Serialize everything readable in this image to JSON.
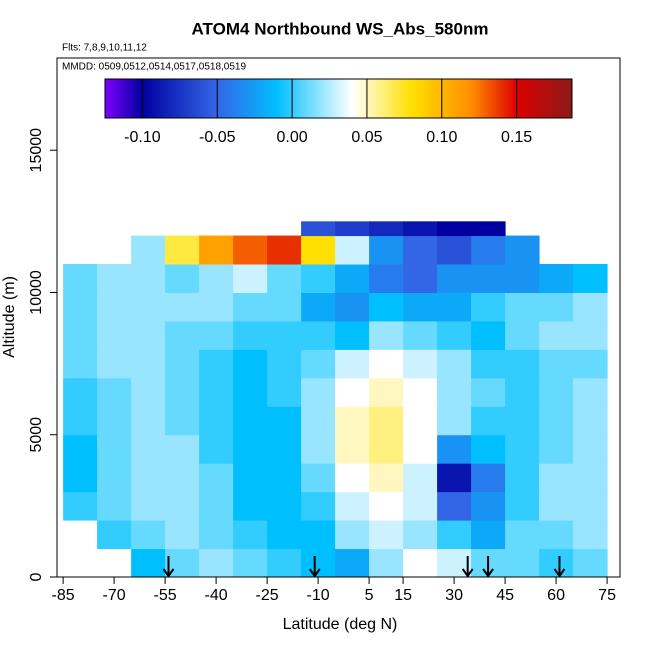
{
  "chart_data": {
    "type": "heatmap",
    "title": "ATOM4 Northbound WS_Abs_580nm",
    "subtitle": "Flts: 7,8,9,10,11,12",
    "annotation": "MMDD: 0509,0512,0514,0517,0518,0519",
    "x_label": "Latitude (deg N)",
    "y_label": "Altitude (m)",
    "xlim": [
      -86.8,
      78.8
    ],
    "ylim": [
      0,
      18240
    ],
    "xticks": [
      -85,
      -70,
      -55,
      -40,
      -25,
      -10,
      5,
      15,
      30,
      45,
      60,
      75
    ],
    "yticks": [
      0,
      5000,
      10000,
      15000
    ],
    "xbins": [
      -85,
      -75,
      -65,
      -55,
      -45,
      -35,
      -25,
      -15,
      -5,
      5,
      15,
      25,
      35,
      45,
      55,
      65,
      75
    ],
    "ybins": [
      0,
      1000,
      2000,
      3000,
      4000,
      5000,
      6000,
      7000,
      8000,
      9000,
      10000,
      11000,
      12000,
      12500
    ],
    "values": [
      [
        null,
        null,
        -0.01,
        0.01,
        0.02,
        0.01,
        0,
        -0.01,
        -0.02,
        0.02,
        0.04,
        0.03,
        0.01,
        0.01,
        0,
        0.01
      ],
      [
        null,
        0,
        0.01,
        0.02,
        0.01,
        0,
        -0.01,
        -0.01,
        0.02,
        0.03,
        0.02,
        0,
        -0.02,
        0.01,
        0.01,
        0.02
      ],
      [
        0,
        0.01,
        0.02,
        0.02,
        0.01,
        -0.01,
        -0.01,
        0,
        0.03,
        0.04,
        0.03,
        -0.05,
        -0.03,
        0,
        0.02,
        0.02
      ],
      [
        -0.01,
        0.01,
        0.02,
        0.02,
        0.01,
        -0.01,
        -0.01,
        0.01,
        0.04,
        0.05,
        0.03,
        -0.09,
        -0.04,
        0,
        0.02,
        0.02
      ],
      [
        -0.01,
        0.01,
        0.02,
        0.02,
        0,
        -0.01,
        -0.01,
        0.02,
        0.05,
        0.06,
        0.04,
        -0.03,
        -0.01,
        0,
        0.01,
        0.02
      ],
      [
        0,
        0.01,
        0.02,
        0.01,
        0,
        -0.01,
        -0.01,
        0.02,
        0.05,
        0.06,
        0.04,
        0.02,
        0,
        0,
        0.01,
        0.02
      ],
      [
        0,
        0.01,
        0.02,
        0.01,
        0,
        -0.01,
        0,
        0.02,
        0.04,
        0.05,
        0.04,
        0.02,
        0.01,
        0,
        0.01,
        0.02
      ],
      [
        0.01,
        0.02,
        0.02,
        0.01,
        0,
        -0.01,
        0,
        0.01,
        0.03,
        0.04,
        0.03,
        0.02,
        0,
        0,
        0.01,
        0.01
      ],
      [
        0.01,
        0.02,
        0.02,
        0.01,
        0.01,
        0,
        0,
        0,
        -0.01,
        0.02,
        0.01,
        0,
        -0.01,
        0.01,
        0.02,
        0.02
      ],
      [
        0.01,
        0.02,
        0.02,
        0.02,
        0.02,
        0.01,
        0.01,
        -0.02,
        -0.03,
        -0.01,
        -0.02,
        -0.02,
        0,
        0.01,
        0.01,
        0.02
      ],
      [
        0.01,
        0.02,
        0.02,
        0.01,
        0.02,
        0.03,
        0.01,
        0,
        -0.02,
        -0.04,
        -0.05,
        -0.03,
        -0.03,
        -0.03,
        -0.02,
        -0.01
      ],
      [
        null,
        null,
        0.02,
        0.07,
        0.11,
        0.13,
        0.14,
        0.08,
        0.03,
        -0.03,
        -0.05,
        -0.06,
        -0.04,
        -0.03,
        null,
        null
      ],
      [
        null,
        null,
        null,
        null,
        null,
        null,
        null,
        -0.06,
        -0.07,
        -0.08,
        -0.09,
        -0.1,
        -0.1,
        null,
        null,
        null
      ]
    ],
    "arrows": [
      -54,
      -11,
      34,
      40,
      61
    ],
    "colorbar_lim": [
      -0.125,
      0.187
    ],
    "colorbar_ticks": [
      {
        "value": -0.1,
        "label": "-0.10"
      },
      {
        "value": -0.05,
        "label": "-0.05"
      },
      {
        "value": 0,
        "label": "0.00"
      },
      {
        "value": 0.05,
        "label": "0.05"
      },
      {
        "value": 0.1,
        "label": "0.10"
      },
      {
        "value": 0.15,
        "label": "0.15"
      }
    ],
    "colormap": [
      {
        "value": -0.125,
        "color": "#7f00ff"
      },
      {
        "value": -0.1,
        "color": "#0000a0"
      },
      {
        "value": -0.05,
        "color": "#3366e6"
      },
      {
        "value": -0.01,
        "color": "#00bfff"
      },
      {
        "value": 0.04,
        "color": "#ffffff"
      },
      {
        "value": 0.08,
        "color": "#ffe000"
      },
      {
        "value": 0.12,
        "color": "#ff8c00"
      },
      {
        "value": 0.15,
        "color": "#dd0000"
      },
      {
        "value": 0.187,
        "color": "#8b1a1a"
      }
    ]
  }
}
